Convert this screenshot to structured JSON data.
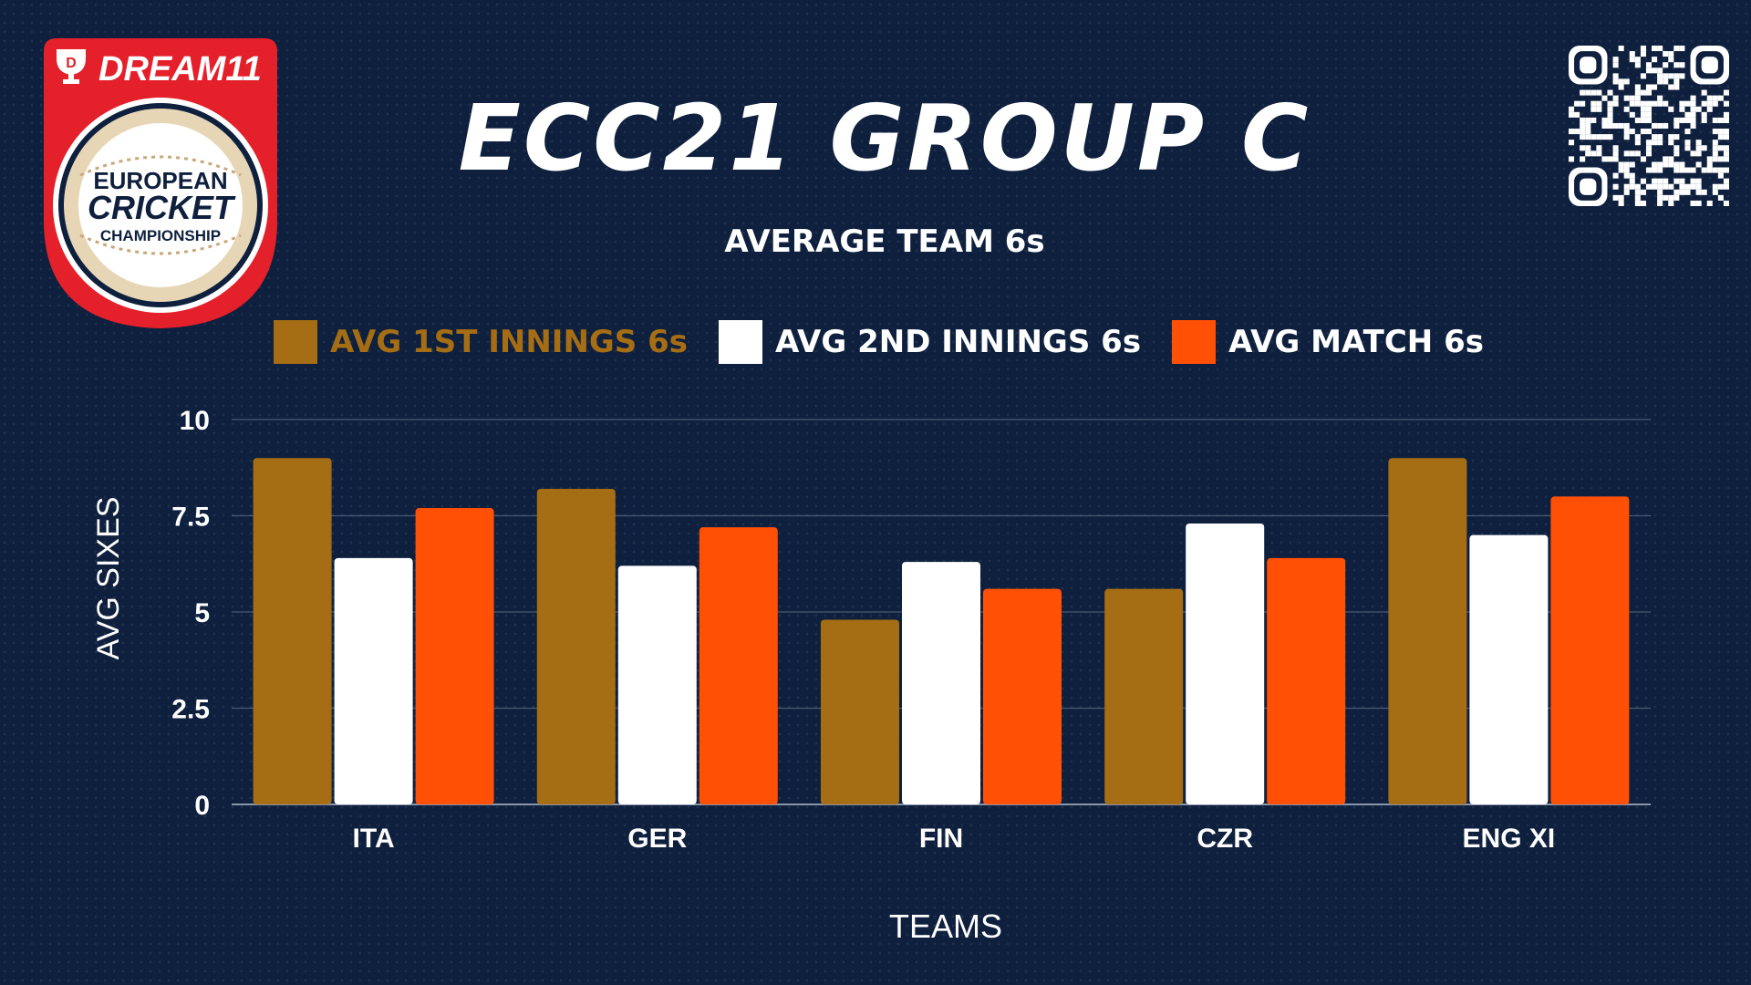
{
  "header": {
    "title": "ECC21 GROUP C",
    "subtitle": "AVERAGE TEAM 6s"
  },
  "logo": {
    "brand_text": "DREAM11",
    "line1": "EUROPEAN",
    "line2": "CRICKET",
    "line3": "CHAMPIONSHIP",
    "icon": "trophy-icon",
    "colors": {
      "shield": "#e4202b",
      "ring": "#0e203d",
      "ball": "#e6d6b6"
    }
  },
  "qr": {
    "icon": "qr-code-icon"
  },
  "colors": {
    "background": "#0e203d",
    "series_1": "#a56d14",
    "series_2": "#ffffff",
    "series_3": "#ff5006",
    "grid": "#4a5a74"
  },
  "legend": {
    "placement": "top",
    "items": [
      {
        "label": "AVG 1ST INNINGS 6s",
        "color": "#a56d14",
        "text_color": "#a56d14"
      },
      {
        "label": "AVG 2ND INNINGS 6s",
        "color": "#ffffff",
        "text_color": "#ffffff"
      },
      {
        "label": "AVG MATCH 6s",
        "color": "#ff5006",
        "text_color": "#ffffff"
      }
    ]
  },
  "chart_data": {
    "type": "bar",
    "title": "ECC21 GROUP C",
    "subtitle": "AVERAGE TEAM 6s",
    "xlabel": "TEAMS",
    "ylabel": "AVG SIXES",
    "categories": [
      "ITA",
      "GER",
      "FIN",
      "CZR",
      "ENG XI"
    ],
    "series": [
      {
        "name": "AVG 1ST INNINGS 6s",
        "color": "#a56d14",
        "values": [
          9,
          8.2,
          4.8,
          5.6,
          9
        ]
      },
      {
        "name": "AVG 2ND INNINGS 6s",
        "color": "#ffffff",
        "values": [
          6.4,
          6.2,
          6.3,
          7.3,
          7
        ]
      },
      {
        "name": "AVG MATCH 6s",
        "color": "#ff5006",
        "values": [
          7.7,
          7.2,
          5.6,
          6.4,
          8
        ]
      }
    ],
    "ylim": [
      0,
      10
    ],
    "yticks": [
      0,
      2.5,
      5,
      7.5,
      10
    ],
    "ytick_labels": [
      "0",
      "2.5",
      "5",
      "7.5",
      "10"
    ],
    "grid": true,
    "legend_position": "top"
  }
}
